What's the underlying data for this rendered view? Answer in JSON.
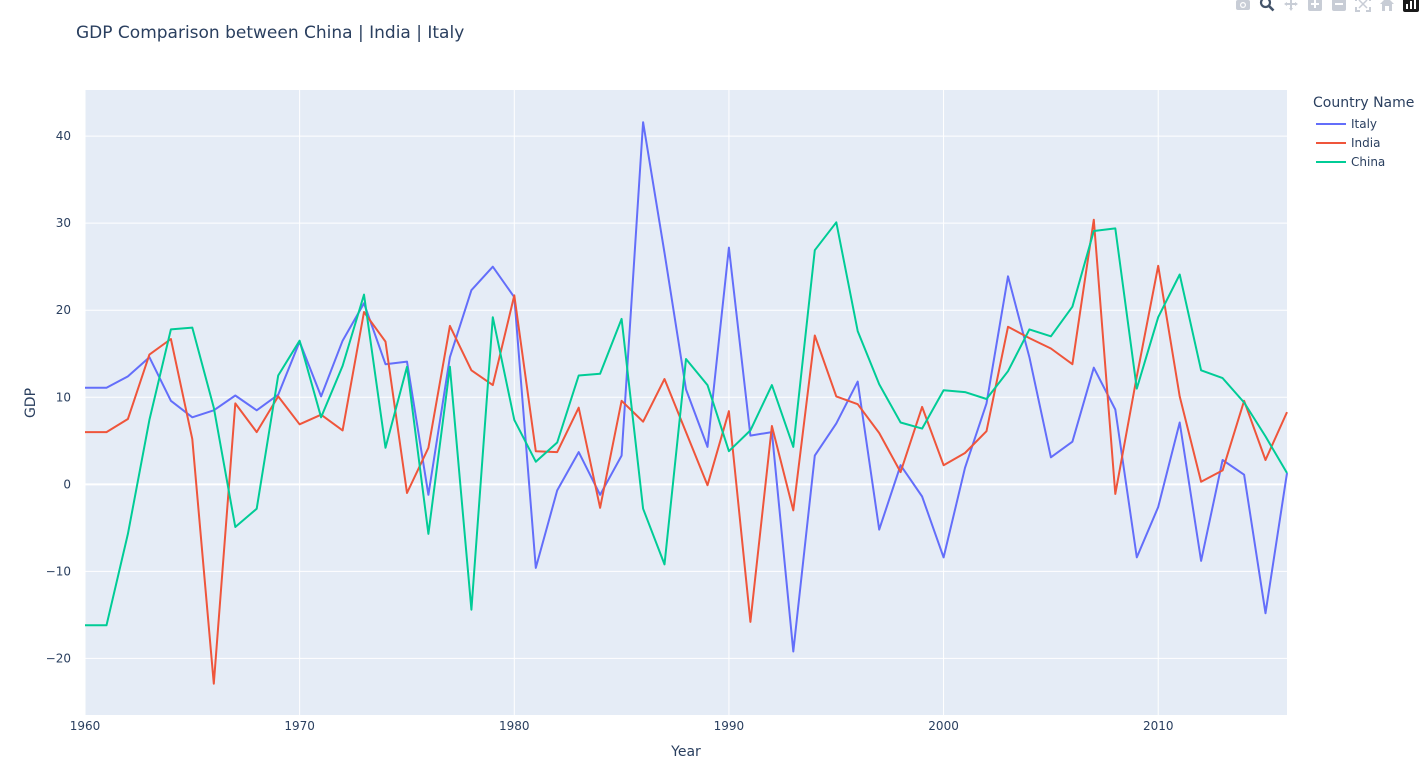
{
  "title": "GDP Comparison between China | India | Italy",
  "legend": {
    "title": "Country Name"
  },
  "colors": {
    "plot_bg": "#e5ecf6",
    "grid": "#ffffff",
    "text": "#2a3f5f"
  },
  "modebar": [
    {
      "name": "camera-icon"
    },
    {
      "name": "zoom-icon"
    },
    {
      "name": "pan-icon"
    },
    {
      "name": "zoom-in-icon"
    },
    {
      "name": "zoom-out-icon"
    },
    {
      "name": "autoscale-icon"
    },
    {
      "name": "home-icon"
    },
    {
      "name": "plotly-logo-icon"
    }
  ],
  "chart_data": {
    "type": "line",
    "title": "GDP Comparison between China | India | Italy",
    "xlabel": "Year",
    "ylabel": "GDP",
    "xlim": [
      1960,
      2016
    ],
    "ylim": [
      -26.5,
      45.3
    ],
    "xticks": [
      1960,
      1970,
      1980,
      1990,
      2000,
      2010
    ],
    "yticks": [
      -20,
      -10,
      0,
      10,
      20,
      30,
      40
    ],
    "ytick_labels": [
      "−20",
      "−10",
      "0",
      "10",
      "20",
      "30",
      "40"
    ],
    "grid": true,
    "legend_position": "top-right, outside plot",
    "x": [
      1960,
      1961,
      1962,
      1963,
      1964,
      1965,
      1966,
      1967,
      1968,
      1969,
      1970,
      1971,
      1972,
      1973,
      1974,
      1975,
      1976,
      1977,
      1978,
      1979,
      1980,
      1981,
      1982,
      1983,
      1984,
      1985,
      1986,
      1987,
      1988,
      1989,
      1990,
      1991,
      1992,
      1993,
      1994,
      1995,
      1996,
      1997,
      1998,
      1999,
      2000,
      2001,
      2002,
      2003,
      2004,
      2005,
      2006,
      2007,
      2008,
      2009,
      2010,
      2011,
      2012,
      2013,
      2014,
      2015,
      2016
    ],
    "series": [
      {
        "name": "Italy",
        "color": "#636efa",
        "values": [
          11.1,
          11.1,
          12.4,
          14.6,
          9.6,
          7.7,
          8.5,
          10.2,
          8.5,
          10.3,
          16.4,
          10.1,
          16.5,
          20.8,
          13.8,
          14.1,
          -1.2,
          14.6,
          22.3,
          25.0,
          21.5,
          -9.6,
          -0.7,
          3.7,
          -1.2,
          3.3,
          41.6,
          26.6,
          10.9,
          4.3,
          27.2,
          5.6,
          6.0,
          -19.2,
          3.3,
          7.0,
          11.8,
          -5.2,
          2.2,
          -1.4,
          -8.4,
          1.9,
          9.3,
          23.9,
          14.6,
          3.1,
          4.9,
          13.4,
          8.6,
          -8.4,
          -2.6,
          7.1,
          -8.8,
          2.8,
          1.1,
          -14.8,
          1.3
        ]
      },
      {
        "name": "India",
        "color": "#ef553b",
        "values": [
          6.0,
          6.0,
          7.5,
          14.9,
          16.7,
          5.2,
          -22.9,
          9.3,
          6.0,
          10.1,
          6.9,
          8.0,
          6.2,
          19.8,
          16.4,
          -1.0,
          4.2,
          18.2,
          13.1,
          11.4,
          21.7,
          3.8,
          3.7,
          8.8,
          -2.7,
          9.6,
          7.2,
          12.1,
          6.0,
          -0.1,
          8.4,
          -15.8,
          6.7,
          -3.0,
          17.1,
          10.1,
          9.2,
          5.9,
          1.4,
          8.9,
          2.2,
          3.6,
          6.1,
          18.1,
          16.8,
          15.6,
          13.8,
          30.4,
          -1.1,
          12.4,
          25.1,
          10.1,
          0.3,
          1.6,
          9.6,
          2.8,
          8.3
        ]
      },
      {
        "name": "China",
        "color": "#00cc96",
        "values": [
          -16.2,
          -16.2,
          -5.7,
          7.4,
          17.8,
          18.0,
          8.8,
          -4.9,
          -2.8,
          12.5,
          16.5,
          7.7,
          13.6,
          21.8,
          4.2,
          13.5,
          -5.7,
          13.5,
          -14.4,
          19.2,
          7.4,
          2.6,
          4.8,
          12.5,
          12.7,
          19.0,
          -2.8,
          -9.2,
          14.4,
          11.4,
          3.8,
          6.2,
          11.4,
          4.3,
          26.9,
          30.1,
          17.6,
          11.5,
          7.1,
          6.4,
          10.8,
          10.6,
          9.8,
          13.0,
          17.8,
          17.0,
          20.4,
          29.1,
          29.4,
          11.0,
          19.2,
          24.1,
          13.1,
          12.2,
          9.4,
          5.5,
          1.3
        ]
      }
    ]
  }
}
